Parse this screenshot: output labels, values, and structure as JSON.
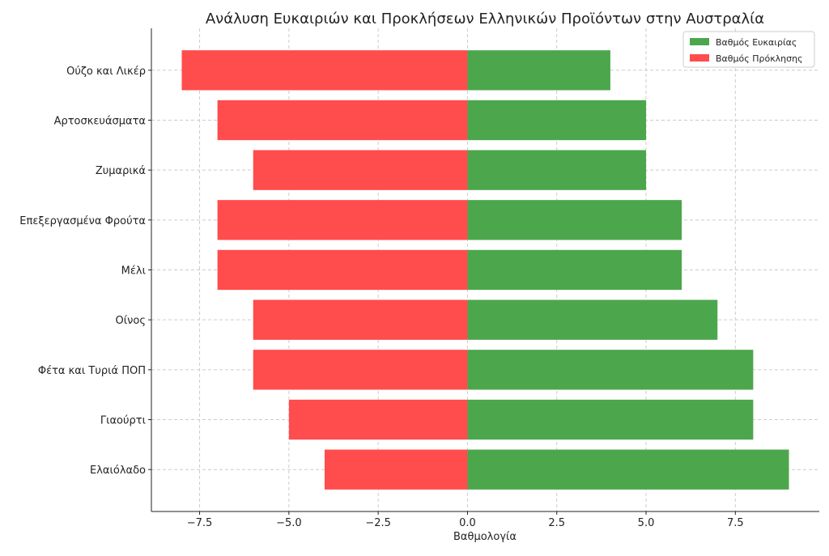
{
  "chart_data": {
    "type": "bar",
    "orientation": "horizontal",
    "title": "Ανάλυση Ευκαιριών και Προκλήσεων Ελληνικών Προϊόντων στην Αυστραλία",
    "xlabel": "Βαθμολογία",
    "ylabel": "",
    "categories": [
      "Ούζο και Λικέρ",
      "Αρτοσκευάσματα",
      "Ζυμαρικά",
      "Επεξεργασμένα Φρούτα",
      "Μέλι",
      "Οίνος",
      "Φέτα και Τυριά ΠΟΠ",
      "Γιαούρτι",
      "Ελαιόλαδο"
    ],
    "series": [
      {
        "name": "Βαθμός Ευκαιρίας",
        "color": "#4ca64c",
        "values": [
          4,
          5,
          5,
          6,
          6,
          7,
          8,
          8,
          9
        ]
      },
      {
        "name": "Βαθμός Πρόκλησης",
        "color": "#ff4c4c",
        "values": [
          -8,
          -7,
          -6,
          -7,
          -7,
          -6,
          -6,
          -5,
          -4
        ]
      }
    ],
    "xlim": [
      -8.85,
      9.85
    ],
    "xticks": [
      -7.5,
      -5.0,
      -2.5,
      0.0,
      2.5,
      5.0,
      7.5
    ],
    "xtick_labels": [
      "−7.5",
      "−5.0",
      "−2.5",
      "0.0",
      "2.5",
      "5.0",
      "7.5"
    ],
    "grid": true,
    "legend_position": "top-right"
  }
}
